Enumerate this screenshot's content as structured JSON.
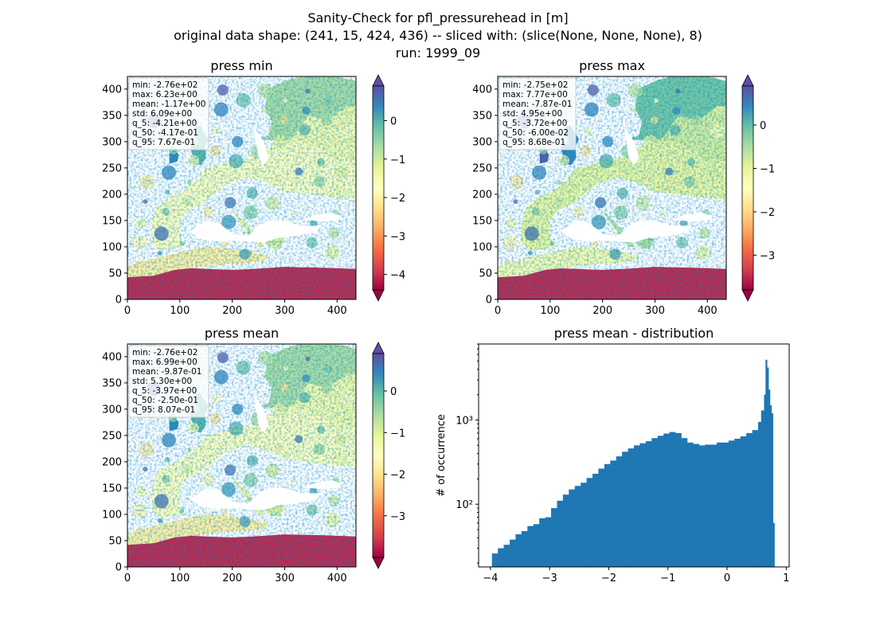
{
  "figure": {
    "suptitle_lines": [
      "Sanity-Check for pfl_pressurehead in [m]",
      "original data shape: (241, 15, 424, 436) -- sliced with: (slice(None, None, None), 8)",
      "run: 1999_09"
    ]
  },
  "colors": {
    "colormap": "Spectral",
    "colormap_stops": [
      "#9e0142",
      "#d53e4f",
      "#f46d43",
      "#fdae61",
      "#fee08b",
      "#ffffbf",
      "#e6f598",
      "#abdda4",
      "#66c2a5",
      "#3288bd",
      "#5e4fa2"
    ],
    "histogram_bar": "#1f77b4"
  },
  "chart_data": [
    {
      "type": "heatmap",
      "title": "press min",
      "xlabel": "",
      "ylabel": "",
      "xlim": [
        0,
        436
      ],
      "ylim": [
        0,
        424
      ],
      "x_ticks": [
        0,
        100,
        200,
        300,
        400
      ],
      "y_ticks": [
        0,
        50,
        100,
        150,
        200,
        250,
        300,
        350,
        400
      ],
      "colorbar": {
        "min": -4.4,
        "max": 0.9,
        "ticks": [
          0,
          -1,
          -2,
          -3,
          -4
        ],
        "tick_labels": [
          "0",
          "−1",
          "−2",
          "−3",
          "−4"
        ],
        "extend": "both"
      },
      "stats_box": [
        "min: -2.76e+02",
        "max: 6.23e+00",
        "mean: -1.17e+00",
        "std: 6.09e+00",
        "q_5: -4.21e+00",
        "q_50: -4.17e-01",
        "q_95: 7.67e-01"
      ]
    },
    {
      "type": "heatmap",
      "title": "press max",
      "xlabel": "",
      "ylabel": "",
      "xlim": [
        0,
        436
      ],
      "ylim": [
        0,
        424
      ],
      "x_ticks": [
        0,
        100,
        200,
        300,
        400
      ],
      "y_ticks": [
        0,
        50,
        100,
        150,
        200,
        250,
        300,
        350,
        400
      ],
      "colorbar": {
        "min": -3.8,
        "max": 0.9,
        "ticks": [
          0,
          -1,
          -2,
          -3
        ],
        "tick_labels": [
          "0",
          "−1",
          "−2",
          "−3"
        ],
        "extend": "both"
      },
      "stats_box": [
        "min: -2.75e+02",
        "max: 7.77e+00",
        "mean: -7.87e-01",
        "std: 4.95e+00",
        "q_5: -3.72e+00",
        "q_50: -6.00e-02",
        "q_95: 8.68e-01"
      ]
    },
    {
      "type": "heatmap",
      "title": "press mean",
      "xlabel": "",
      "ylabel": "",
      "xlim": [
        0,
        436
      ],
      "ylim": [
        0,
        424
      ],
      "x_ticks": [
        0,
        100,
        200,
        300,
        400
      ],
      "y_ticks": [
        0,
        50,
        100,
        150,
        200,
        250,
        300,
        350,
        400
      ],
      "colorbar": {
        "min": -4.0,
        "max": 0.9,
        "ticks": [
          0,
          -1,
          -2,
          -3
        ],
        "tick_labels": [
          "0",
          "−1",
          "−2",
          "−3"
        ],
        "extend": "both"
      },
      "stats_box": [
        "min: -2.76e+02",
        "max: 6.99e+00",
        "mean: -9.87e-01",
        "std: 5.30e+00",
        "q_5: -3.97e+00",
        "q_50: -2.50e-01",
        "q_95: 8.07e-01"
      ]
    },
    {
      "type": "bar",
      "title": "press mean - distribution",
      "xlabel": "",
      "ylabel": "# of occurrence",
      "xlim": [
        -4.2,
        1.05
      ],
      "ylim": [
        18,
        8000
      ],
      "y_scale": "log",
      "x_ticks": [
        -4,
        -3,
        -2,
        -1,
        0,
        1
      ],
      "x_tick_labels": [
        "−4",
        "−3",
        "−2",
        "−1",
        "0",
        "1"
      ],
      "y_ticks": [
        100,
        1000
      ],
      "y_tick_labels": [
        "10²",
        "10³"
      ],
      "bin_width": 0.025,
      "series": [
        {
          "x_start": [
            -3.975,
            -3.875,
            -3.775,
            -3.675,
            -3.575,
            -3.475,
            -3.375,
            -3.275,
            -3.175,
            -3.075,
            -2.975,
            -2.875,
            -2.775,
            -2.675,
            -2.575,
            -2.475,
            -2.375,
            -2.275,
            -2.175,
            -2.075,
            -1.975,
            -1.875,
            -1.775,
            -1.675,
            -1.575,
            -1.475,
            -1.375,
            -1.275,
            -1.175,
            -1.075,
            -0.975,
            -0.875,
            -0.775,
            -0.675,
            -0.575,
            -0.475,
            -0.375,
            -0.275,
            -0.175,
            -0.075,
            0.025,
            0.125,
            0.225,
            0.325,
            0.425,
            0.525,
            0.575,
            0.625,
            0.65,
            0.675,
            0.7,
            0.725,
            0.75,
            0.775
          ],
          "values": [
            26,
            30,
            33,
            38,
            44,
            48,
            55,
            58,
            68,
            70,
            90,
            110,
            130,
            150,
            165,
            180,
            205,
            230,
            265,
            300,
            330,
            370,
            420,
            460,
            500,
            530,
            560,
            610,
            650,
            690,
            720,
            700,
            610,
            540,
            520,
            500,
            510,
            510,
            540,
            540,
            570,
            600,
            640,
            700,
            760,
            950,
            1300,
            2000,
            5200,
            4200,
            2300,
            1500,
            1200,
            60
          ]
        }
      ]
    }
  ]
}
